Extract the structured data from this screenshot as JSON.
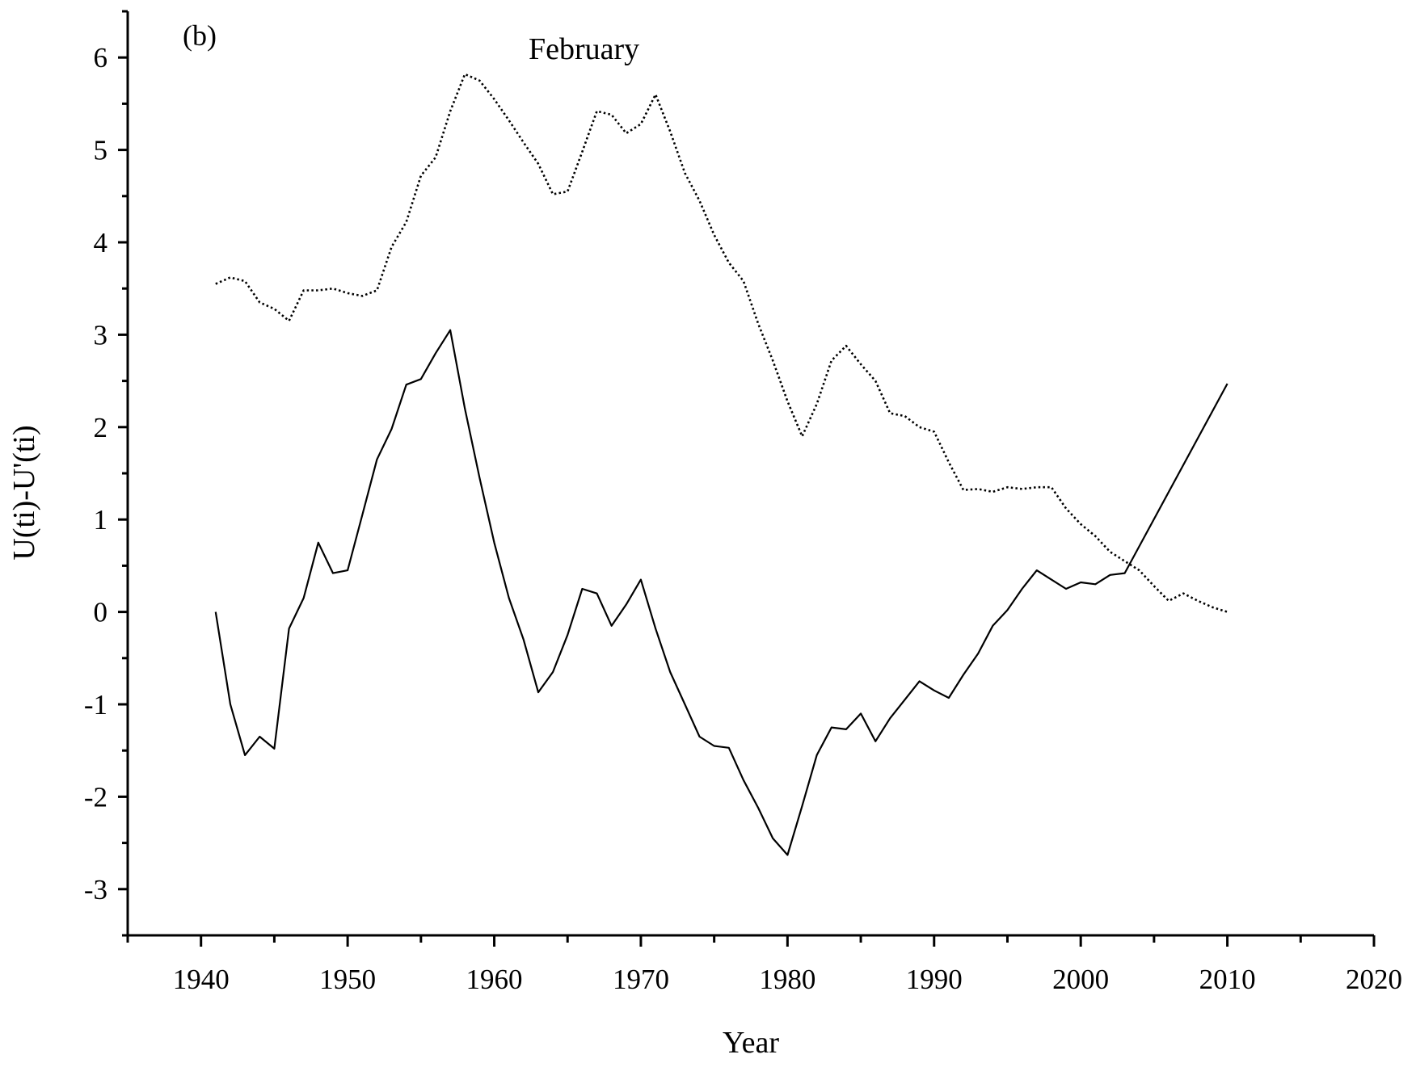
{
  "chart_data": {
    "type": "line",
    "panel_label": "(b)",
    "title": "February",
    "xlabel": "Year",
    "ylabel": "U(ti)-U'(ti)",
    "xlim": [
      1935,
      2020
    ],
    "ylim": [
      -3.5,
      6.5
    ],
    "x_ticks": [
      1940,
      1950,
      1960,
      1970,
      1980,
      1990,
      2000,
      2010,
      2020
    ],
    "x_tick_labels": [
      "1940",
      "1950",
      "1960",
      "1970",
      "1980",
      "1990",
      "2000",
      "2010",
      "2020"
    ],
    "y_ticks": [
      -3,
      -2,
      -1,
      0,
      1,
      2,
      3,
      4,
      5,
      6
    ],
    "y_tick_labels": [
      "-3",
      "-2",
      "-1",
      "0",
      "1",
      "2",
      "3",
      "4",
      "5",
      "6"
    ],
    "grid": false,
    "legend": false,
    "series": [
      {
        "style": "solid",
        "color": "#000000",
        "x": [
          1941,
          1942,
          1943,
          1944,
          1945,
          1946,
          1947,
          1948,
          1949,
          1950,
          1951,
          1952,
          1953,
          1954,
          1955,
          1956,
          1957,
          1958,
          1959,
          1960,
          1961,
          1962,
          1963,
          1964,
          1965,
          1966,
          1967,
          1968,
          1969,
          1970,
          1971,
          1972,
          1973,
          1974,
          1975,
          1976,
          1977,
          1978,
          1979,
          1980,
          1981,
          1982,
          1983,
          1984,
          1985,
          1986,
          1987,
          1988,
          1989,
          1990,
          1991,
          1992,
          1993,
          1994,
          1995,
          1996,
          1997,
          1998,
          1999,
          2000,
          2001,
          2002,
          2003,
          2010
        ],
        "values": [
          0,
          -1.0,
          -1.55,
          -1.35,
          -1.48,
          -0.18,
          0.15,
          0.75,
          0.42,
          0.45,
          1.05,
          1.65,
          1.98,
          2.46,
          2.52,
          2.8,
          3.05,
          2.2,
          1.45,
          0.75,
          0.15,
          -0.3,
          -0.87,
          -0.65,
          -0.25,
          0.25,
          0.2,
          -0.15,
          0.08,
          0.35,
          -0.18,
          -0.65,
          -1.0,
          -1.35,
          -1.45,
          -1.47,
          -1.82,
          -2.12,
          -2.45,
          -2.63,
          -2.1,
          -1.55,
          -1.25,
          -1.27,
          -1.1,
          -1.4,
          -1.15,
          -0.95,
          -0.75,
          -0.85,
          -0.93,
          -0.68,
          -0.45,
          -0.15,
          0.02,
          0.25,
          0.45,
          0.35,
          0.25,
          0.32,
          0.3,
          0.4,
          0.42,
          2.47
        ]
      },
      {
        "style": "dotted",
        "color": "#000000",
        "x": [
          1941,
          1942,
          1943,
          1944,
          1945,
          1946,
          1947,
          1948,
          1949,
          1950,
          1951,
          1952,
          1953,
          1954,
          1955,
          1956,
          1957,
          1958,
          1959,
          1960,
          1961,
          1962,
          1963,
          1964,
          1965,
          1966,
          1967,
          1968,
          1969,
          1970,
          1971,
          1972,
          1973,
          1974,
          1975,
          1976,
          1977,
          1978,
          1979,
          1980,
          1981,
          1982,
          1983,
          1984,
          1985,
          1986,
          1987,
          1988,
          1989,
          1990,
          1991,
          1992,
          1993,
          1994,
          1995,
          1996,
          1997,
          1998,
          1999,
          2000,
          2001,
          2002,
          2003,
          2004,
          2005,
          2006,
          2007,
          2008,
          2009,
          2010
        ],
        "values": [
          3.55,
          3.62,
          3.58,
          3.35,
          3.28,
          3.15,
          3.48,
          3.48,
          3.5,
          3.45,
          3.42,
          3.48,
          3.95,
          4.22,
          4.72,
          4.92,
          5.42,
          5.82,
          5.75,
          5.55,
          5.32,
          5.08,
          4.85,
          4.52,
          4.55,
          4.98,
          5.42,
          5.38,
          5.18,
          5.28,
          5.6,
          5.2,
          4.75,
          4.45,
          4.08,
          3.78,
          3.58,
          3.12,
          2.72,
          2.28,
          1.9,
          2.25,
          2.72,
          2.88,
          2.68,
          2.5,
          2.15,
          2.12,
          2.0,
          1.95,
          1.62,
          1.32,
          1.33,
          1.3,
          1.35,
          1.33,
          1.35,
          1.35,
          1.12,
          0.95,
          0.82,
          0.65,
          0.55,
          0.45,
          0.28,
          0.12,
          0.2,
          0.12,
          0.05,
          0.0
        ]
      }
    ]
  }
}
